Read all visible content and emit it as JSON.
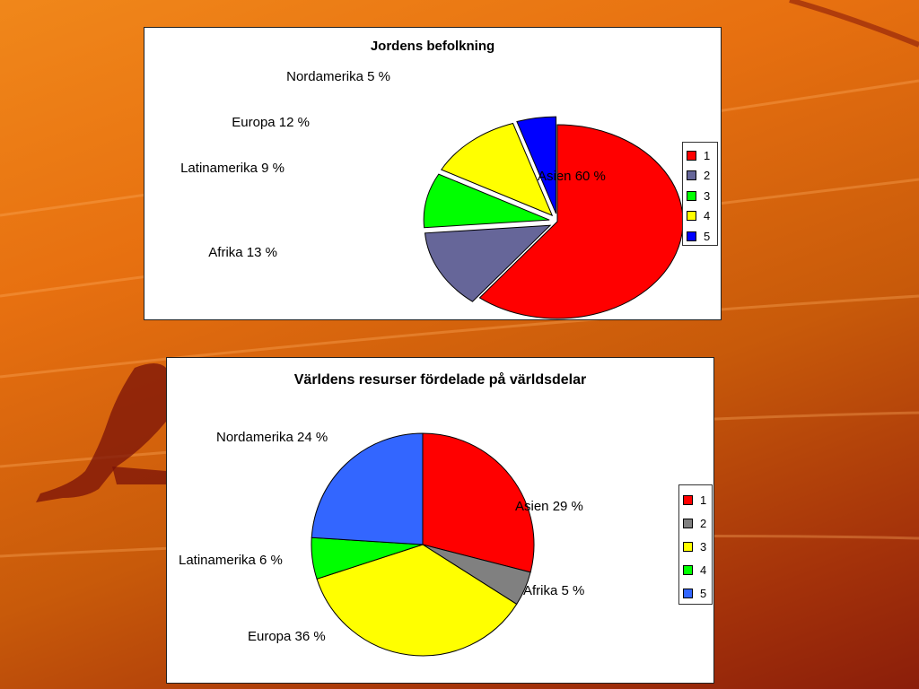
{
  "chart_data": [
    {
      "type": "pie",
      "title": "Jordens befolkning",
      "exploded": true,
      "slices": [
        {
          "label": "Asien 60 %",
          "value": 60,
          "color": "#ff0000"
        },
        {
          "label": "Afrika 13 %",
          "value": 13,
          "color": "#666699"
        },
        {
          "label": "Latinamerika 9 %",
          "value": 9,
          "color": "#00ff00"
        },
        {
          "label": "Europa 12 %",
          "value": 12,
          "color": "#ffff00"
        },
        {
          "label": "Nordamerika 5 %",
          "value": 5,
          "color": "#0000ff"
        }
      ],
      "legend": [
        "1",
        "2",
        "3",
        "4",
        "5"
      ],
      "legend_position": "right"
    },
    {
      "type": "pie",
      "title": "Världens resurser fördelade på världsdelar",
      "exploded": false,
      "slices": [
        {
          "label": "Asien 29 %",
          "value": 29,
          "color": "#ff0000"
        },
        {
          "label": "Afrika 5 %",
          "value": 5,
          "color": "#808080"
        },
        {
          "label": "Europa 36 %",
          "value": 36,
          "color": "#ffff00"
        },
        {
          "label": "Latinamerika 6  %",
          "value": 6,
          "color": "#00ff00"
        },
        {
          "label": "Nordamerika 24 %",
          "value": 24,
          "color": "#3366ff"
        }
      ],
      "legend": [
        "1",
        "2",
        "3",
        "4",
        "5"
      ],
      "legend_position": "right"
    }
  ]
}
